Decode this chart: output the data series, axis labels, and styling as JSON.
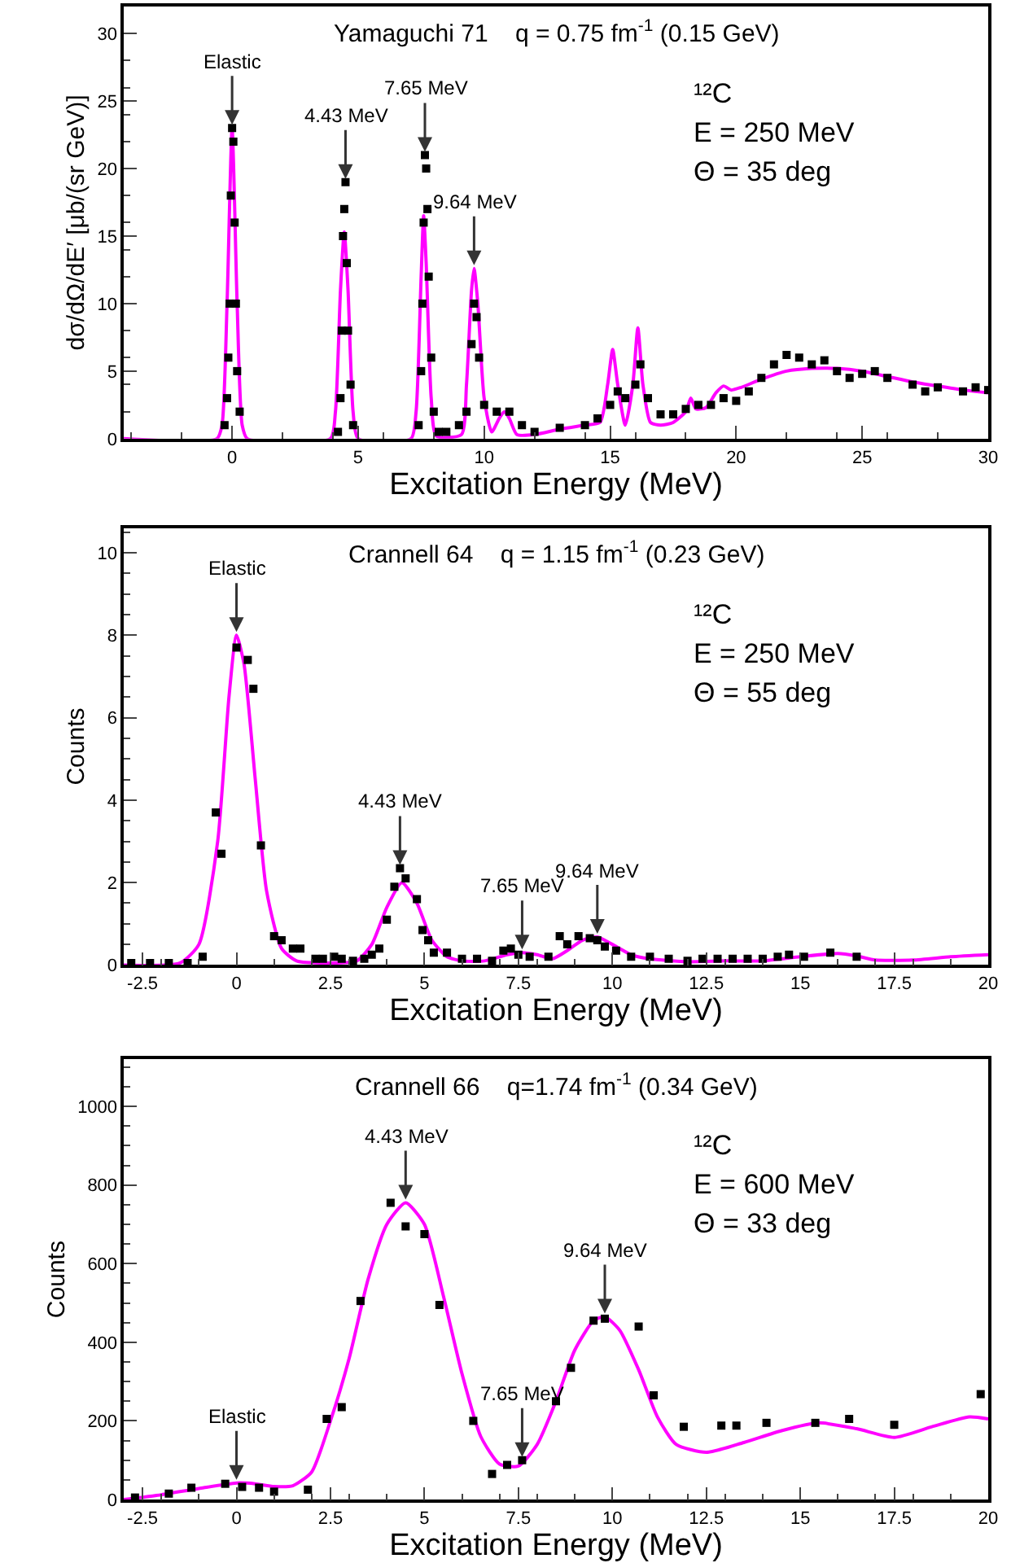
{
  "chart_data": [
    {
      "type": "scatter",
      "title": "Yamaguchi 71    q = 0.75 fm$^{-1}$ (0.15 GeV)",
      "xlabel": "Excitation Energy (MeV)",
      "ylabel": "dσ/dΩ/dE′ [μb/(sr GeV)]",
      "xlim": [
        -4.3,
        30
      ],
      "ylim": [
        0,
        32
      ],
      "xticks": [
        0,
        5,
        10,
        15,
        20,
        25,
        30
      ],
      "yticks": [
        0,
        5,
        10,
        15,
        20,
        25,
        30
      ],
      "annotations": [
        {
          "text": "Elastic",
          "x": 0,
          "y": 23
        },
        {
          "text": "4.43 MeV",
          "x": 4.5,
          "y": 19
        },
        {
          "text": "7.65 MeV",
          "x": 7.65,
          "y": 21
        },
        {
          "text": "9.64 MeV",
          "x": 9.6,
          "y": 12.6
        },
        "¹²C",
        "E = 250 MeV",
        "Θ = 35 deg"
      ],
      "series": [
        {
          "type": "scatter",
          "marker": "square",
          "color": "#000000",
          "x": [
            -0.3,
            -0.2,
            -0.15,
            -0.1,
            -0.05,
            0,
            0.05,
            0.1,
            0.15,
            0.2,
            0.3,
            4.2,
            4.3,
            4.35,
            4.4,
            4.45,
            4.5,
            4.55,
            4.6,
            4.7,
            4.8,
            7.4,
            7.5,
            7.55,
            7.6,
            7.65,
            7.7,
            7.75,
            7.8,
            7.9,
            8.0,
            8.2,
            8.5,
            9,
            9.3,
            9.5,
            9.6,
            9.7,
            9.8,
            10,
            10.5,
            11,
            11.5,
            12,
            13,
            14,
            14.5,
            15,
            15.3,
            15.6,
            16,
            16.2,
            16.5,
            17,
            17.5,
            18,
            18.5,
            19,
            19.5,
            20,
            20.5,
            21,
            21.5,
            22,
            22.5,
            23,
            23.5,
            24,
            24.5,
            25,
            25.5,
            26,
            27,
            27.5,
            28,
            29,
            29.5,
            30
          ],
          "values": [
            1,
            3,
            6,
            10,
            18,
            23,
            22,
            16,
            10,
            5,
            2,
            0.5,
            3,
            8,
            15,
            17,
            19,
            13,
            8,
            4,
            1,
            1,
            5,
            10,
            16,
            21,
            20,
            17,
            12,
            6,
            2,
            0.5,
            0.5,
            1,
            2,
            7,
            10,
            9,
            6,
            2.5,
            2,
            2,
            1,
            0.5,
            0.8,
            1,
            1.5,
            2.5,
            3.5,
            3,
            4,
            5.5,
            3,
            1.8,
            1.8,
            2.2,
            2.5,
            2.5,
            3,
            2.8,
            3.5,
            4.5,
            5.5,
            6.2,
            6,
            5.5,
            5.8,
            5,
            4.5,
            4.8,
            5,
            4.5,
            4,
            3.5,
            3.8,
            3.5,
            3.8,
            3.6
          ]
        },
        {
          "type": "line",
          "marker": "none",
          "line_style": "solid",
          "color": "#ff00ff",
          "x": [
            -4.3,
            -0.6,
            -0.4,
            -0.2,
            0,
            0.2,
            0.4,
            0.6,
            3.9,
            4.1,
            4.3,
            4.45,
            4.6,
            4.8,
            5,
            7.1,
            7.3,
            7.5,
            7.6,
            7.7,
            7.9,
            8.1,
            9.1,
            9.3,
            9.5,
            9.6,
            9.75,
            10,
            10.3,
            10.6,
            10.8,
            11,
            11.3,
            12,
            13,
            14,
            14.6,
            14.9,
            15.1,
            15.3,
            15.6,
            15.9,
            16.1,
            16.3,
            16.6,
            17,
            17.5,
            18,
            18.2,
            18.4,
            18.8,
            19.2,
            19.5,
            19.8,
            20.2,
            21,
            22,
            23,
            24,
            25,
            26,
            27,
            28,
            29,
            30
          ],
          "values": [
            0,
            0,
            1,
            10,
            23,
            10,
            1,
            0,
            0,
            2,
            11,
            15.3,
            11,
            2,
            0,
            0,
            2,
            12,
            16.5,
            13,
            3,
            0.2,
            0.3,
            4,
            11,
            12.6,
            10,
            3,
            0.5,
            1.5,
            2,
            1.5,
            0.3,
            0.3,
            0.7,
            1,
            1.2,
            4,
            6.6,
            4,
            1,
            4,
            8.2,
            4,
            1.2,
            1,
            1.2,
            2,
            3,
            2.2,
            2.3,
            3.4,
            3.9,
            3.6,
            3.8,
            4.4,
            5,
            5.2,
            5.2,
            5,
            4.6,
            4.2,
            3.9,
            3.6,
            3.4
          ]
        }
      ]
    },
    {
      "type": "scatter",
      "title": "Crannell 64    q = 1.15 fm$^{-1}$ (0.23 GeV)",
      "xlabel": "Excitation Energy (MeV)",
      "ylabel": "Counts",
      "xlim": [
        -3,
        20
      ],
      "ylim": [
        0,
        10.6
      ],
      "xticks": [
        -2.5,
        0,
        2.5,
        5,
        7.5,
        10,
        12.5,
        15,
        17.5,
        20
      ],
      "yticks": [
        0,
        2,
        4,
        6,
        8,
        10
      ],
      "annotations": [
        {
          "text": "Elastic",
          "x": 0,
          "y": 8
        },
        {
          "text": "4.43 MeV",
          "x": 4.35,
          "y": 2.35
        },
        {
          "text": "7.65 MeV",
          "x": 7.6,
          "y": 0.3
        },
        {
          "text": "9.64 MeV",
          "x": 9.6,
          "y": 0.68
        },
        "¹²C",
        "E = 250 MeV",
        "Θ = 55 deg"
      ],
      "series": [
        {
          "type": "scatter",
          "marker": "square",
          "color": "#000000",
          "x": [
            -2.8,
            -2.3,
            -1.8,
            -1.3,
            -0.9,
            -0.55,
            -0.4,
            0,
            0.3,
            0.45,
            0.65,
            1,
            1.2,
            1.5,
            1.7,
            2.1,
            2.3,
            2.6,
            2.8,
            3.1,
            3.4,
            3.6,
            3.8,
            4,
            4.2,
            4.35,
            4.5,
            4.8,
            4.95,
            5.1,
            5.25,
            5.6,
            6,
            6.4,
            6.8,
            7.1,
            7.3,
            7.5,
            7.8,
            8.3,
            8.6,
            8.8,
            9.1,
            9.4,
            9.6,
            9.8,
            10.1,
            10.5,
            11,
            11.5,
            12,
            12.4,
            12.8,
            13.2,
            13.6,
            14,
            14.4,
            14.7,
            15.1,
            15.8,
            16.5
          ],
          "values": [
            0.05,
            0.05,
            0.05,
            0.05,
            0.2,
            3.7,
            2.7,
            7.7,
            7.4,
            6.7,
            2.9,
            0.7,
            0.6,
            0.4,
            0.4,
            0.15,
            0.15,
            0.2,
            0.15,
            0.1,
            0.15,
            0.25,
            0.4,
            1.1,
            1.9,
            2.35,
            2.1,
            1.6,
            0.85,
            0.6,
            0.3,
            0.3,
            0.15,
            0.15,
            0.1,
            0.35,
            0.4,
            0.25,
            0.2,
            0.2,
            0.7,
            0.5,
            0.7,
            0.65,
            0.6,
            0.45,
            0.35,
            0.2,
            0.2,
            0.15,
            0.1,
            0.15,
            0.15,
            0.15,
            0.15,
            0.15,
            0.2,
            0.25,
            0.2,
            0.3,
            0.2
          ]
        },
        {
          "type": "line",
          "marker": "none",
          "line_style": "solid",
          "color": "#ff00ff",
          "x": [
            -3,
            -1.5,
            -1,
            -0.5,
            -0.2,
            0,
            0.2,
            0.5,
            0.8,
            1.2,
            1.6,
            2.5,
            3.2,
            3.6,
            4,
            4.4,
            4.8,
            5.2,
            5.6,
            6,
            6.6,
            7.2,
            7.6,
            8,
            8.4,
            8.8,
            9.2,
            9.6,
            10,
            10.5,
            11,
            12,
            13,
            14,
            15,
            16,
            16.5,
            17,
            18,
            19,
            20
          ],
          "values": [
            0,
            0.05,
            0.5,
            3,
            6.5,
            8,
            7.3,
            4.5,
            1.8,
            0.4,
            0.1,
            0.05,
            0.1,
            0.5,
            1.4,
            2,
            1.5,
            0.6,
            0.2,
            0.1,
            0.1,
            0.25,
            0.3,
            0.25,
            0.15,
            0.35,
            0.6,
            0.68,
            0.5,
            0.25,
            0.15,
            0.08,
            0.1,
            0.1,
            0.2,
            0.28,
            0.22,
            0.12,
            0.12,
            0.2,
            0.25
          ]
        }
      ]
    },
    {
      "type": "scatter",
      "title": "Crannell 66    q=1.74 fm$^{-1}$ (0.34 GeV)",
      "xlabel": "Excitation Energy (MeV)",
      "ylabel": "Counts",
      "xlim": [
        -3,
        20
      ],
      "ylim": [
        0,
        1120
      ],
      "xticks": [
        -2.5,
        0,
        2.5,
        5,
        7.5,
        10,
        12.5,
        15,
        17.5,
        20
      ],
      "yticks": [
        0,
        200,
        400,
        600,
        800,
        1000
      ],
      "annotations": [
        {
          "text": "Elastic",
          "x": 0,
          "y": 42
        },
        {
          "text": "4.43 MeV",
          "x": 4.5,
          "y": 755
        },
        {
          "text": "7.65 MeV",
          "x": 7.6,
          "y": 100
        },
        {
          "text": "9.64 MeV",
          "x": 9.8,
          "y": 465
        },
        "¹²C",
        "E = 600 MeV",
        "Θ = 33 deg"
      ],
      "series": [
        {
          "type": "scatter",
          "marker": "square",
          "color": "#000000",
          "x": [
            -2.7,
            -1.8,
            -1.2,
            -0.3,
            0.15,
            0.6,
            1,
            1.9,
            2.4,
            2.8,
            3.3,
            4.1,
            4.5,
            5,
            5.4,
            6.3,
            6.8,
            7.2,
            7.6,
            8.5,
            8.9,
            9.5,
            9.8,
            10.7,
            11.1,
            11.9,
            12.9,
            13.3,
            14.1,
            15.4,
            16.3,
            17.5,
            19.8
          ],
          "values": [
            5,
            15,
            30,
            40,
            32,
            30,
            20,
            25,
            205,
            235,
            505,
            755,
            695,
            675,
            495,
            200,
            65,
            88,
            100,
            250,
            335,
            455,
            460,
            440,
            265,
            185,
            188,
            188,
            195,
            195,
            205,
            190,
            268
          ]
        },
        {
          "type": "line",
          "marker": "none",
          "line_style": "solid",
          "color": "#ff00ff",
          "x": [
            -3,
            -2,
            -1,
            0,
            0.5,
            1,
            1.5,
            2,
            2.5,
            3,
            3.5,
            4,
            4.5,
            5,
            5.5,
            6,
            6.5,
            7,
            7.5,
            8,
            8.5,
            9,
            9.5,
            9.8,
            10.2,
            10.7,
            11.2,
            11.7,
            12.5,
            13.5,
            14.5,
            15.5,
            16.5,
            17.5,
            18.5,
            19.5,
            20
          ],
          "values": [
            0,
            12,
            28,
            42,
            40,
            33,
            35,
            70,
            200,
            360,
            560,
            700,
            755,
            700,
            520,
            320,
            160,
            90,
            85,
            140,
            250,
            380,
            455,
            465,
            430,
            330,
            210,
            140,
            120,
            145,
            175,
            195,
            180,
            158,
            185,
            210,
            205
          ]
        }
      ]
    }
  ]
}
